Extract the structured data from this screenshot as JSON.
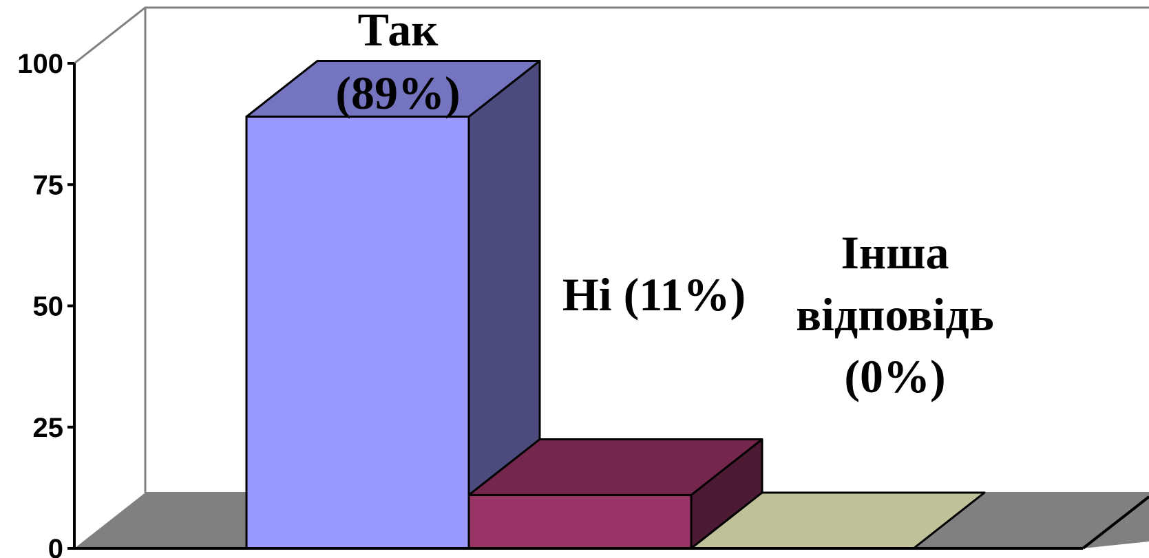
{
  "chart_data": {
    "type": "bar",
    "three_d": true,
    "title": "",
    "xlabel": "",
    "ylabel": "",
    "categories": [
      "Так",
      "Ні",
      "Інша відповідь"
    ],
    "values": [
      89,
      11,
      0
    ],
    "ylim": [
      0,
      100
    ],
    "yticks": [
      "0",
      "25",
      "50",
      "75",
      "100"
    ],
    "grid": false,
    "legend": "none",
    "data_labels": [
      [
        "Так",
        "(89%)"
      ],
      [
        "Ні (11%)"
      ],
      [
        "Інша",
        "відповідь",
        "(0%)"
      ]
    ],
    "colors": {
      "bar_fronts": [
        "#9999ff",
        "#993366",
        "#c0c099"
      ],
      "bar_tops": [
        "#7474c1",
        "#74264c",
        "#c0c099"
      ],
      "bar_sides": [
        "#4b4b7d",
        "#4d1a33",
        "#80805e"
      ],
      "floor": "#808080",
      "wall_lines": "#808080",
      "axis": "#000000"
    }
  }
}
